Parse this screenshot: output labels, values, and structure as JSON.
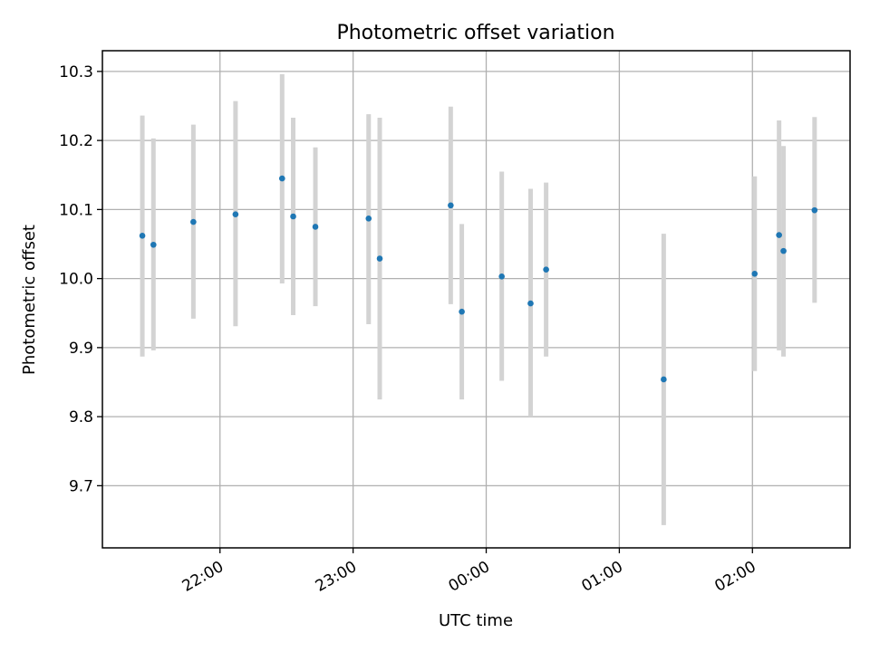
{
  "chart_data": {
    "type": "scatter",
    "title": "Photometric offset variation",
    "xlabel": "UTC time",
    "ylabel": "Photometric offset",
    "x_axis_type": "time",
    "xlim": [
      "21:07",
      "02:44"
    ],
    "ylim": [
      9.61,
      10.33
    ],
    "xticks": [
      "22:00",
      "23:00",
      "00:00",
      "01:00",
      "02:00"
    ],
    "yticks": [
      "9.7",
      "9.8",
      "9.9",
      "10.0",
      "10.1",
      "10.2",
      "10.3"
    ],
    "grid": true,
    "legend": "none",
    "x_tick_label_rotation_deg": 30,
    "colors": {
      "marker": "#1f77b4",
      "errorbar": "#d3d3d3",
      "grid": "#b0b0b0"
    },
    "points": [
      {
        "x": "21:25",
        "y": 10.062,
        "ylow": 9.887,
        "yhigh": 10.236
      },
      {
        "x": "21:30",
        "y": 10.049,
        "ylow": 9.896,
        "yhigh": 10.203
      },
      {
        "x": "21:48",
        "y": 10.082,
        "ylow": 9.942,
        "yhigh": 10.223
      },
      {
        "x": "22:07",
        "y": 10.093,
        "ylow": 9.931,
        "yhigh": 10.257
      },
      {
        "x": "22:28",
        "y": 10.145,
        "ylow": 9.993,
        "yhigh": 10.296
      },
      {
        "x": "22:33",
        "y": 10.09,
        "ylow": 9.947,
        "yhigh": 10.233
      },
      {
        "x": "22:43",
        "y": 10.075,
        "ylow": 9.96,
        "yhigh": 10.19
      },
      {
        "x": "23:07",
        "y": 10.087,
        "ylow": 9.934,
        "yhigh": 10.238
      },
      {
        "x": "23:12",
        "y": 10.029,
        "ylow": 9.825,
        "yhigh": 10.233
      },
      {
        "x": "23:44",
        "y": 10.106,
        "ylow": 9.963,
        "yhigh": 10.249
      },
      {
        "x": "23:49",
        "y": 9.952,
        "ylow": 9.825,
        "yhigh": 10.079
      },
      {
        "x": "00:07",
        "y": 10.003,
        "ylow": 9.852,
        "yhigh": 10.155
      },
      {
        "x": "00:20",
        "y": 9.964,
        "ylow": 9.8,
        "yhigh": 10.13
      },
      {
        "x": "00:27",
        "y": 10.013,
        "ylow": 9.887,
        "yhigh": 10.139
      },
      {
        "x": "01:20",
        "y": 9.854,
        "ylow": 9.643,
        "yhigh": 10.065
      },
      {
        "x": "02:01",
        "y": 10.007,
        "ylow": 9.866,
        "yhigh": 10.148
      },
      {
        "x": "02:12",
        "y": 10.063,
        "ylow": 9.896,
        "yhigh": 10.229
      },
      {
        "x": "02:14",
        "y": 10.04,
        "ylow": 9.887,
        "yhigh": 10.192
      },
      {
        "x": "02:28",
        "y": 10.099,
        "ylow": 9.965,
        "yhigh": 10.234
      }
    ]
  }
}
